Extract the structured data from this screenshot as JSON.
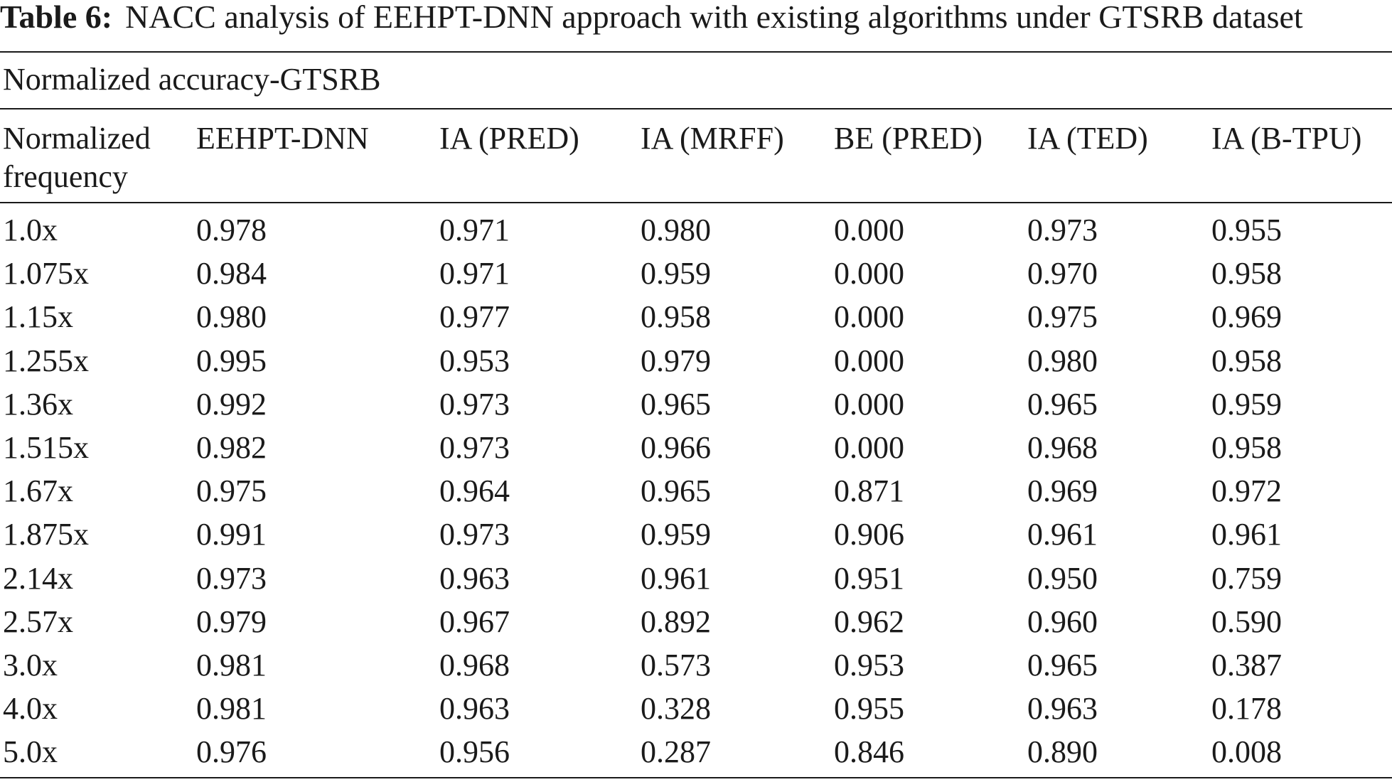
{
  "caption": {
    "label": "Table 6:",
    "text": "NACC analysis of EEHPT-DNN approach with existing algorithms under GTSRB dataset"
  },
  "subtitle": "Normalized accuracy-GTSRB",
  "columns": [
    "Normalized frequency",
    "EEHPT-DNN",
    "IA (PRED)",
    "IA (MRFF)",
    "BE (PRED)",
    "IA (TED)",
    "IA (B-TPU)"
  ],
  "rows": [
    [
      "1.0x",
      "0.978",
      "0.971",
      "0.980",
      "0.000",
      "0.973",
      "0.955"
    ],
    [
      "1.075x",
      "0.984",
      "0.971",
      "0.959",
      "0.000",
      "0.970",
      "0.958"
    ],
    [
      "1.15x",
      "0.980",
      "0.977",
      "0.958",
      "0.000",
      "0.975",
      "0.969"
    ],
    [
      "1.255x",
      "0.995",
      "0.953",
      "0.979",
      "0.000",
      "0.980",
      "0.958"
    ],
    [
      "1.36x",
      "0.992",
      "0.973",
      "0.965",
      "0.000",
      "0.965",
      "0.959"
    ],
    [
      "1.515x",
      "0.982",
      "0.973",
      "0.966",
      "0.000",
      "0.968",
      "0.958"
    ],
    [
      "1.67x",
      "0.975",
      "0.964",
      "0.965",
      "0.871",
      "0.969",
      "0.972"
    ],
    [
      "1.875x",
      "0.991",
      "0.973",
      "0.959",
      "0.906",
      "0.961",
      "0.961"
    ],
    [
      "2.14x",
      "0.973",
      "0.963",
      "0.961",
      "0.951",
      "0.950",
      "0.759"
    ],
    [
      "2.57x",
      "0.979",
      "0.967",
      "0.892",
      "0.962",
      "0.960",
      "0.590"
    ],
    [
      "3.0x",
      "0.981",
      "0.968",
      "0.573",
      "0.953",
      "0.965",
      "0.387"
    ],
    [
      "4.0x",
      "0.981",
      "0.963",
      "0.328",
      "0.955",
      "0.963",
      "0.178"
    ],
    [
      "5.0x",
      "0.976",
      "0.956",
      "0.287",
      "0.846",
      "0.890",
      "0.008"
    ]
  ]
}
